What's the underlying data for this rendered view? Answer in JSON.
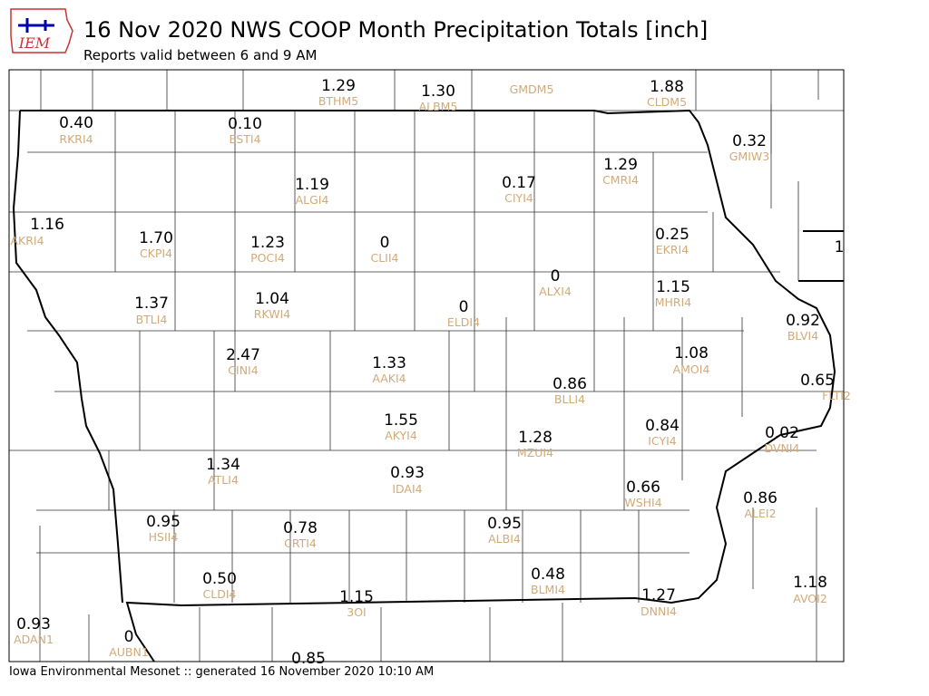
{
  "header": {
    "logo": "IEM",
    "title": "16 Nov 2020 NWS COOP Month Precipitation Totals [inch]",
    "subtitle": "Reports valid between 6 and 9 AM"
  },
  "footer": "Iowa Environmental Mesonet :: generated 16 November 2020 10:10 AM",
  "stations": [
    {
      "value": "0.40",
      "id": "RKRI4"
    },
    {
      "value": "0.10",
      "id": "ESTI4"
    },
    {
      "value": "1.29",
      "id": "BTHM5"
    },
    {
      "value": "1.30",
      "id": "ALBM5"
    },
    {
      "id": "GMDM5"
    },
    {
      "value": "1.88",
      "id": "CLDM5"
    },
    {
      "value": "0.32",
      "id": "GMIW3"
    },
    {
      "value": "1.19",
      "id": "ALGI4"
    },
    {
      "value": "0.17",
      "id": "CIYI4"
    },
    {
      "value": "1.29",
      "id": "CMRI4"
    },
    {
      "value": "1.16",
      "id": "AKRI4"
    },
    {
      "value": "1.70",
      "id": "CKPI4"
    },
    {
      "value": "1.23",
      "id": "POCI4"
    },
    {
      "value": "0",
      "id": "CLII4"
    },
    {
      "value": "0.25",
      "id": "EKRI4"
    },
    {
      "value": "1"
    },
    {
      "value": "0",
      "id": "ALXI4"
    },
    {
      "value": "1.15",
      "id": "MHRI4"
    },
    {
      "value": "1.37",
      "id": "BTLI4"
    },
    {
      "value": "1.04",
      "id": "RKWI4"
    },
    {
      "value": "0",
      "id": "ELDI4"
    },
    {
      "value": "0.92",
      "id": "BLVI4"
    },
    {
      "value": "2.47",
      "id": "CINI4"
    },
    {
      "value": "1.33",
      "id": "AAKI4"
    },
    {
      "value": "1.08",
      "id": "AMOI4"
    },
    {
      "value": "0.86",
      "id": "BLLI4"
    },
    {
      "value": "0.65",
      "id": "FLTI2"
    },
    {
      "value": "1.55",
      "id": "AKYI4"
    },
    {
      "value": "0.84",
      "id": "ICYI4"
    },
    {
      "value": "0.02",
      "id": "DVNI4"
    },
    {
      "value": "1.28",
      "id": "MZUI4"
    },
    {
      "value": "1.34",
      "id": "ATLI4"
    },
    {
      "value": "0.93",
      "id": "IDAI4"
    },
    {
      "value": "0.66",
      "id": "WSHI4"
    },
    {
      "value": "0.86",
      "id": "ALEI2"
    },
    {
      "value": "0.95",
      "id": "HSII4"
    },
    {
      "value": "0.78",
      "id": "CRTI4"
    },
    {
      "value": "0.95",
      "id": "ALBI4"
    },
    {
      "value": "0.50",
      "id": "CLDI4"
    },
    {
      "value": "0.48",
      "id": "BLMI4"
    },
    {
      "value": "1.15",
      "id": "3OI"
    },
    {
      "value": "1.27",
      "id": "DNNI4"
    },
    {
      "value": "1.18",
      "id": "AVOI2"
    },
    {
      "value": "0.93",
      "id": "ADAN1"
    },
    {
      "value": "0",
      "id": "AUBN1"
    },
    {
      "value": "0.85"
    }
  ]
}
